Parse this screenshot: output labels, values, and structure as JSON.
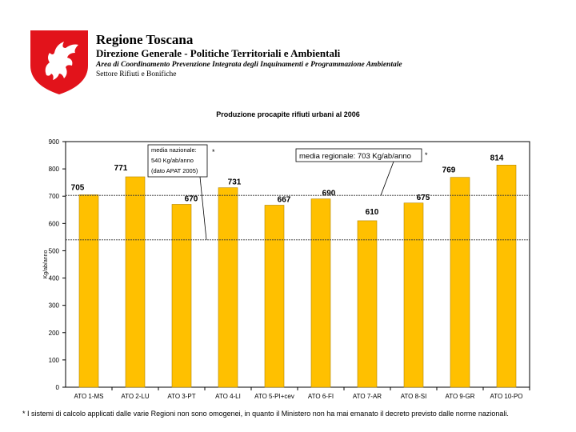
{
  "header": {
    "org_name": "Regione Toscana",
    "direzione": "Direzione Generale - Politiche Territoriali e Ambientali",
    "area": "Area di Coordinamento Prevenzione Integrata degli Inquinamenti e Programmazione Ambientale",
    "settore": "Settore Rifiuti e Bonifiche"
  },
  "colors": {
    "bar": "#FFC000",
    "bar_edge": "#B38600",
    "logo_red": "#E2131B"
  },
  "chart_data": {
    "type": "bar",
    "title": "Produzione procapite rifiuti urbani al 2006",
    "ylabel": "Kg/ab/anno",
    "xlabel": "",
    "ylim": [
      0,
      900
    ],
    "yticks": [
      0,
      100,
      200,
      300,
      400,
      500,
      600,
      700,
      800,
      900
    ],
    "categories": [
      "ATO 1-MS",
      "ATO 2-LU",
      "ATO 3-PT",
      "ATO 4-LI",
      "ATO 5-PI+cev",
      "ATO 6-FI",
      "ATO 7-AR",
      "ATO 8-SI",
      "ATO 9-GR",
      "ATO 10-PO"
    ],
    "values": [
      705,
      771,
      670,
      731,
      667,
      690,
      610,
      675,
      769,
      814
    ],
    "grid": false,
    "reference_lines": [
      {
        "value": 540,
        "label": [
          "media nazionale:",
          "540 Kg/ab/anno",
          "(dato APAT 2005)"
        ],
        "marker": "*"
      },
      {
        "value": 703,
        "label": [
          "media regionale: 703 Kg/ab/anno"
        ],
        "marker": "*"
      }
    ]
  },
  "footnote": "* I sistemi di calcolo applicati dalle varie Regioni non sono omogenei, in quanto il Ministero non ha mai emanato il decreto previsto dalle norme nazionali."
}
